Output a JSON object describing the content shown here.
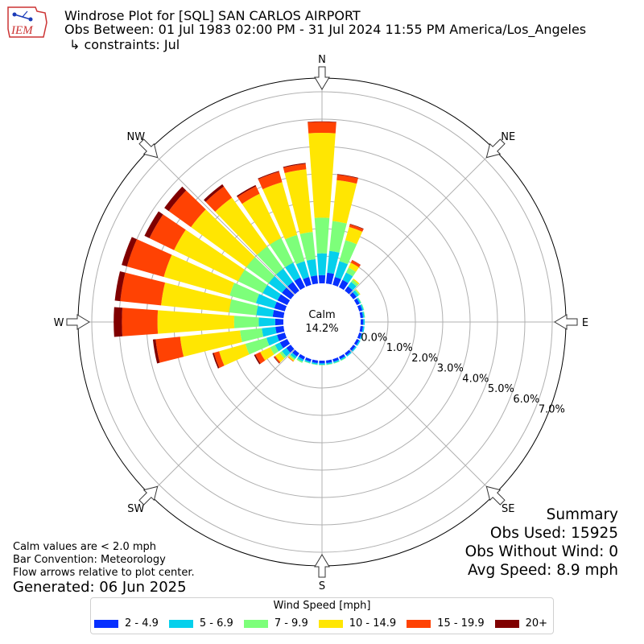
{
  "header": {
    "logo_text": "IEM",
    "title_line1": "Windrose Plot for [SQL] SAN CARLOS AIRPORT",
    "title_line2": "Obs Between: 01 Jul 1983 02:00 PM - 31 Jul 2024 11:55 PM America/Los_Angeles",
    "title_line3": "↳ constraints: Jul"
  },
  "notes": {
    "calm": "Calm values are < 2.0 mph",
    "bar": "Bar Convention: Meteorology",
    "flow": "Flow arrows relative to plot center.",
    "generated": "Generated: 06 Jun 2025"
  },
  "summary": {
    "title": "Summary",
    "obs_used": "Obs Used: 15925",
    "obs_without_wind": "Obs Without Wind: 0",
    "avg_speed": "Avg Speed: 8.9 mph"
  },
  "center": {
    "label": "Calm",
    "value": "14.2%"
  },
  "chart_data": {
    "type": "windrose",
    "directions": [
      "N",
      "NE",
      "E",
      "SE",
      "S",
      "SW",
      "W",
      "NW"
    ],
    "ring_labels": [
      "0.0%",
      "1.0%",
      "2.0%",
      "3.0%",
      "4.0%",
      "5.0%",
      "6.0%",
      "7.0%"
    ],
    "ring_max": 7.5,
    "calm_percent": 14.2,
    "legend_title": "Wind Speed [mph]",
    "bins": [
      {
        "label": "2 - 4.9",
        "color": "#0730ff"
      },
      {
        "label": "5 - 6.9",
        "color": "#05d0ec"
      },
      {
        "label": "7 - 9.9",
        "color": "#7dff7a"
      },
      {
        "label": "10 - 14.9",
        "color": "#ffe602"
      },
      {
        "label": "15 - 19.9",
        "color": "#ff4203"
      },
      {
        "label": "20+",
        "color": "#800000"
      }
    ],
    "sector_width_deg": 10,
    "sectors": [
      {
        "dir": 0,
        "values": [
          0.3,
          0.8,
          1.3,
          3.1,
          0.4,
          0.02
        ]
      },
      {
        "dir": 10,
        "values": [
          0.4,
          0.8,
          1.1,
          1.5,
          0.2,
          0.02
        ]
      },
      {
        "dir": 20,
        "values": [
          0.3,
          0.6,
          0.8,
          0.5,
          0.1,
          0.02
        ]
      },
      {
        "dir": 30,
        "values": [
          0.3,
          0.3,
          0.2,
          0.2,
          0.1,
          0.01
        ]
      },
      {
        "dir": 40,
        "values": [
          0.2,
          0.2,
          0.1,
          0.05,
          0.0,
          0.0
        ]
      },
      {
        "dir": 50,
        "values": [
          0.15,
          0.1,
          0.05,
          0.02,
          0.0,
          0.0
        ]
      },
      {
        "dir": 60,
        "values": [
          0.12,
          0.05,
          0.02,
          0.0,
          0.0,
          0.0
        ]
      },
      {
        "dir": 70,
        "values": [
          0.12,
          0.05,
          0.02,
          0.0,
          0.0,
          0.0
        ]
      },
      {
        "dir": 80,
        "values": [
          0.1,
          0.05,
          0.02,
          0.0,
          0.0,
          0.0
        ]
      },
      {
        "dir": 90,
        "values": [
          0.1,
          0.05,
          0.0,
          0.0,
          0.0,
          0.0
        ]
      },
      {
        "dir": 100,
        "values": [
          0.1,
          0.05,
          0.0,
          0.0,
          0.0,
          0.0
        ]
      },
      {
        "dir": 110,
        "values": [
          0.1,
          0.05,
          0.0,
          0.0,
          0.0,
          0.0
        ]
      },
      {
        "dir": 120,
        "values": [
          0.1,
          0.05,
          0.0,
          0.0,
          0.0,
          0.0
        ]
      },
      {
        "dir": 130,
        "values": [
          0.1,
          0.05,
          0.0,
          0.0,
          0.0,
          0.0
        ]
      },
      {
        "dir": 140,
        "values": [
          0.1,
          0.05,
          0.0,
          0.0,
          0.0,
          0.0
        ]
      },
      {
        "dir": 150,
        "values": [
          0.1,
          0.05,
          0.02,
          0.0,
          0.0,
          0.0
        ]
      },
      {
        "dir": 160,
        "values": [
          0.1,
          0.05,
          0.02,
          0.0,
          0.0,
          0.0
        ]
      },
      {
        "dir": 170,
        "values": [
          0.1,
          0.05,
          0.02,
          0.0,
          0.0,
          0.0
        ]
      },
      {
        "dir": 180,
        "values": [
          0.1,
          0.05,
          0.02,
          0.0,
          0.0,
          0.0
        ]
      },
      {
        "dir": 190,
        "values": [
          0.1,
          0.05,
          0.02,
          0.0,
          0.0,
          0.0
        ]
      },
      {
        "dir": 200,
        "values": [
          0.1,
          0.05,
          0.02,
          0.0,
          0.0,
          0.0
        ]
      },
      {
        "dir": 210,
        "values": [
          0.12,
          0.08,
          0.05,
          0.0,
          0.0,
          0.0
        ]
      },
      {
        "dir": 220,
        "values": [
          0.15,
          0.1,
          0.06,
          0.05,
          0.02,
          0.0
        ]
      },
      {
        "dir": 230,
        "values": [
          0.2,
          0.2,
          0.1,
          0.2,
          0.05,
          0.02
        ]
      },
      {
        "dir": 240,
        "values": [
          0.3,
          0.2,
          0.2,
          0.4,
          0.2,
          0.05
        ]
      },
      {
        "dir": 250,
        "values": [
          0.3,
          0.4,
          0.8,
          1.0,
          0.2,
          0.05
        ]
      },
      {
        "dir": 260,
        "values": [
          0.3,
          0.5,
          0.8,
          2.2,
          0.9,
          0.1
        ]
      },
      {
        "dir": 270,
        "values": [
          0.3,
          0.6,
          0.9,
          2.8,
          1.3,
          0.3
        ]
      },
      {
        "dir": 280,
        "values": [
          0.4,
          0.6,
          1.0,
          2.5,
          1.5,
          0.2
        ]
      },
      {
        "dir": 290,
        "values": [
          0.4,
          0.7,
          1.0,
          2.5,
          1.4,
          0.2
        ]
      },
      {
        "dir": 300,
        "values": [
          0.4,
          0.6,
          1.0,
          2.6,
          1.0,
          0.2
        ]
      },
      {
        "dir": 310,
        "values": [
          0.4,
          0.6,
          1.0,
          2.5,
          1.0,
          0.2
        ]
      },
      {
        "dir": 320,
        "values": [
          0.4,
          0.6,
          1.0,
          2.2,
          0.5,
          0.1
        ]
      },
      {
        "dir": 330,
        "values": [
          0.4,
          0.6,
          1.0,
          1.8,
          0.3,
          0.05
        ]
      },
      {
        "dir": 340,
        "values": [
          0.3,
          0.6,
          1.0,
          2.0,
          0.4,
          0.03
        ]
      },
      {
        "dir": 350,
        "values": [
          0.3,
          0.6,
          1.0,
          2.3,
          0.2,
          0.03
        ]
      }
    ]
  }
}
